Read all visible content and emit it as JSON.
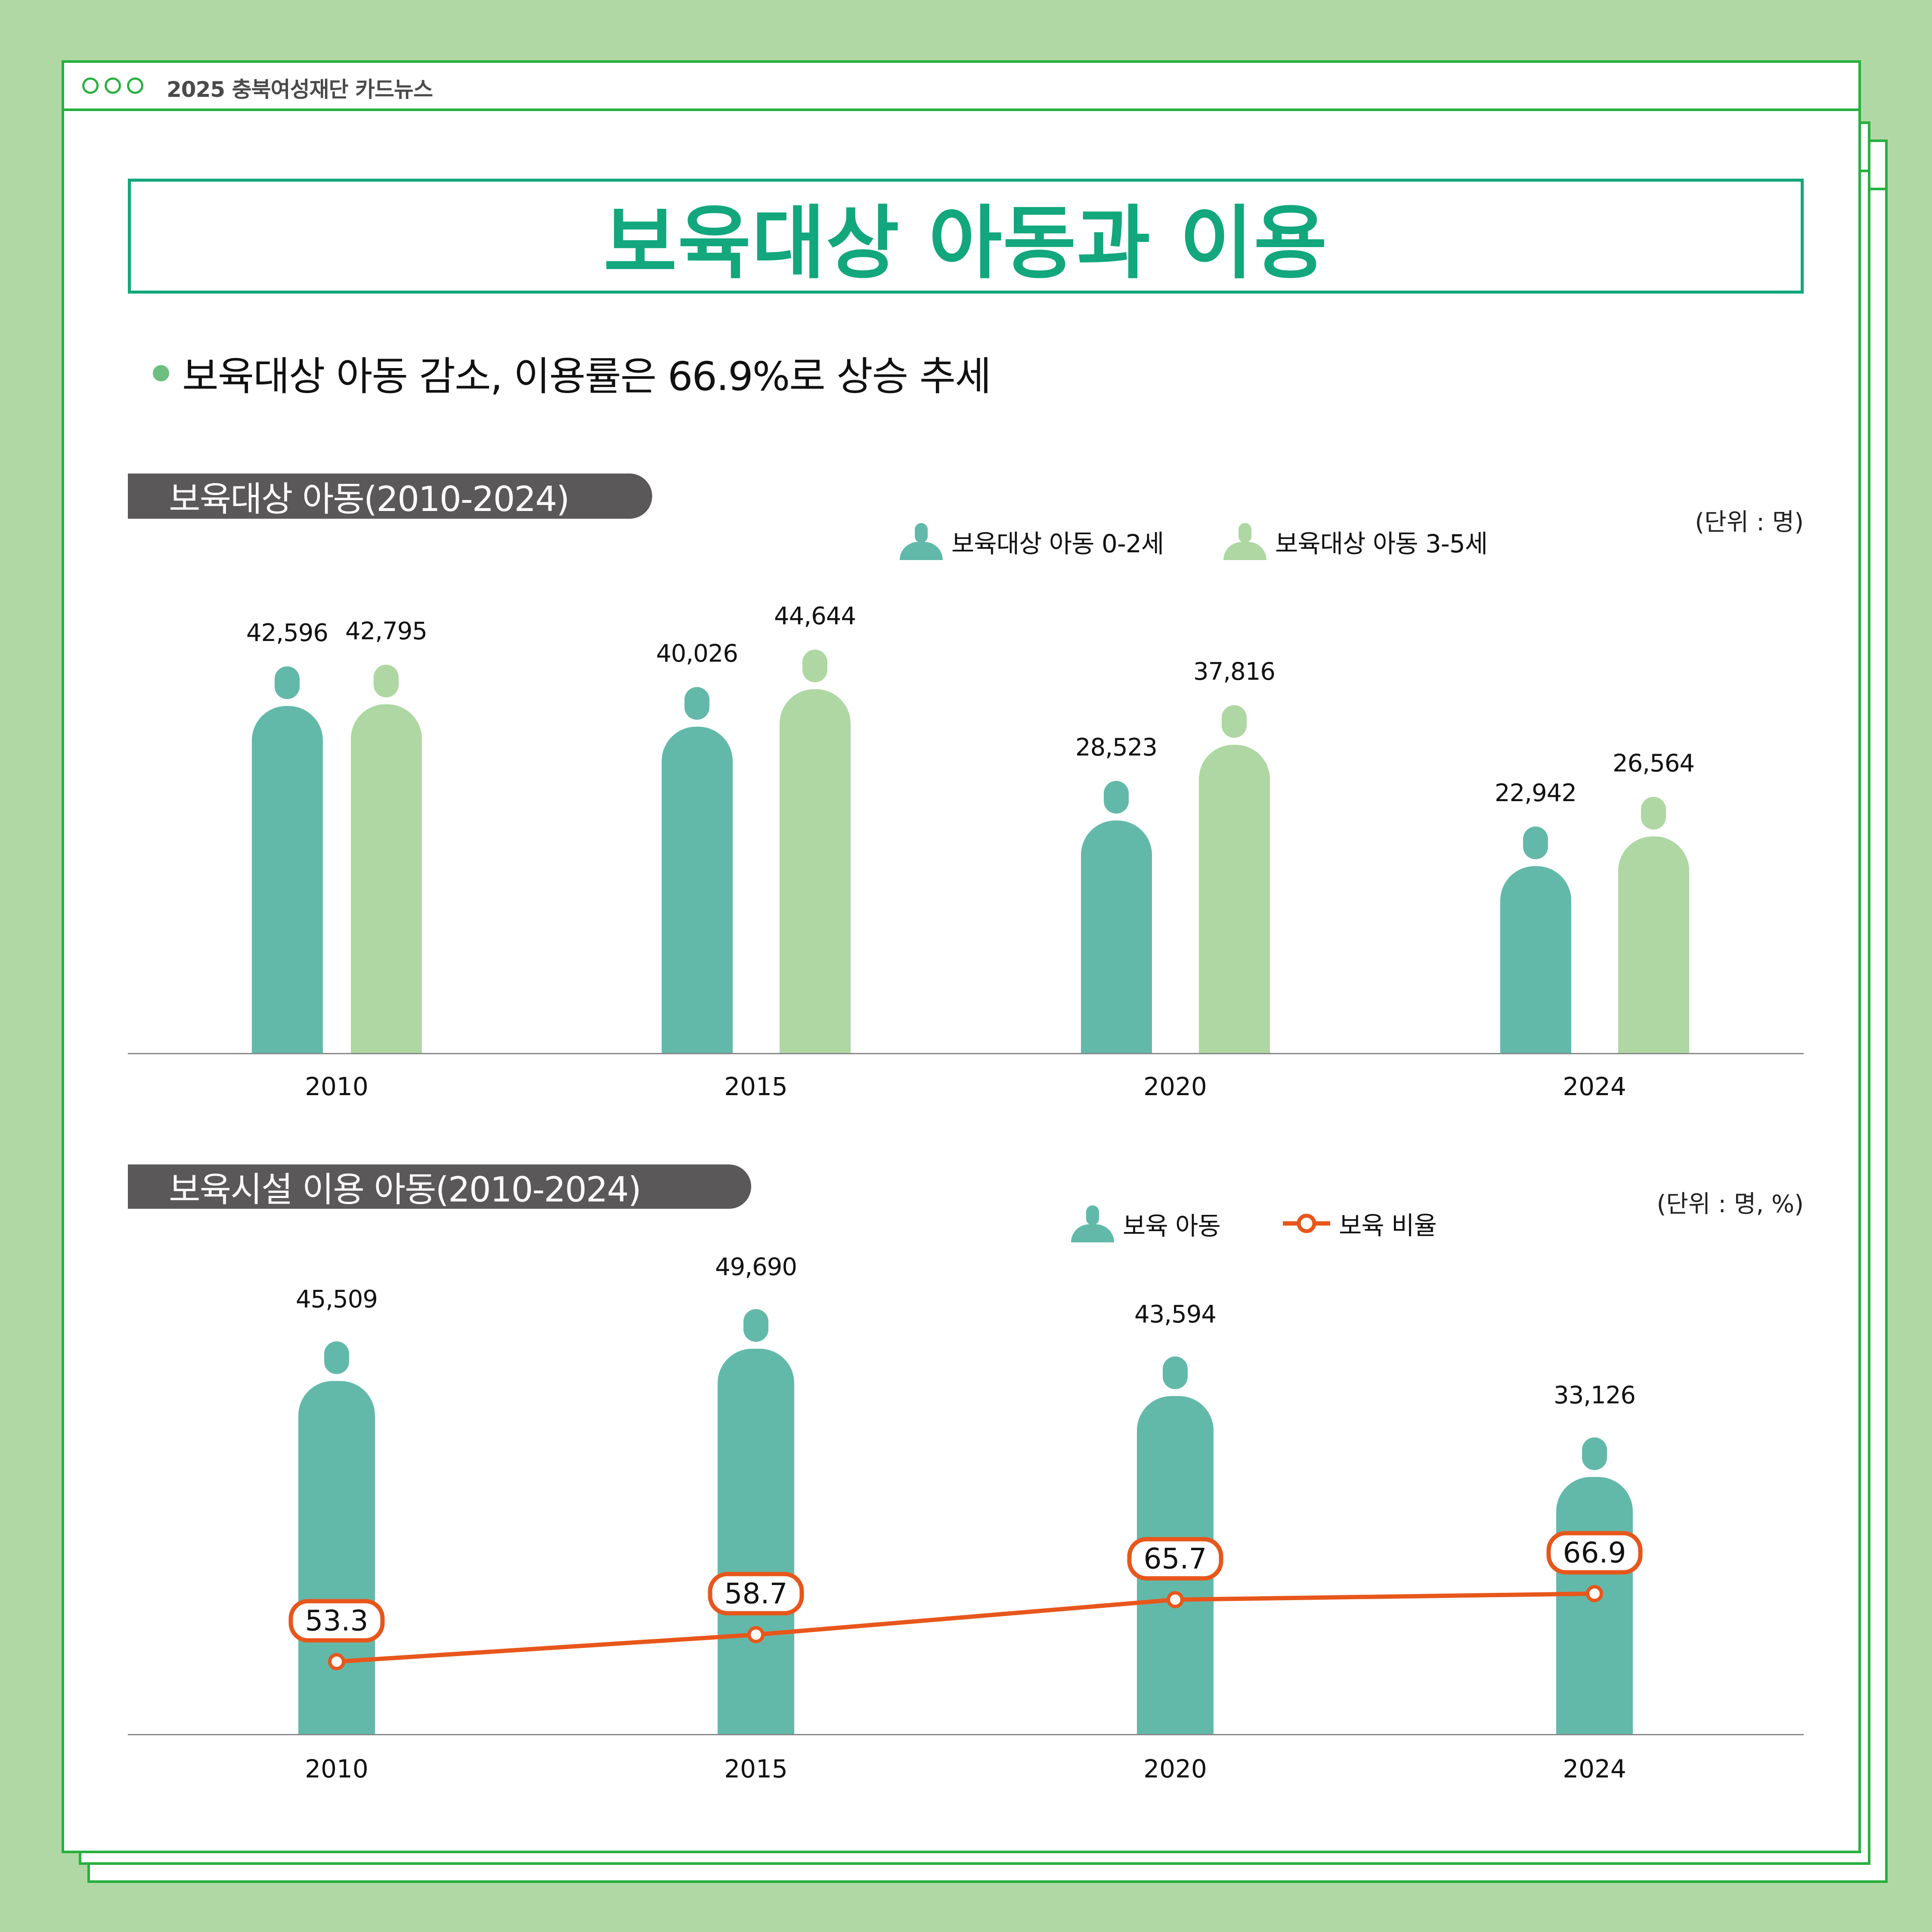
{
  "header": {
    "brand": "2025 충북여성재단 카드뉴스"
  },
  "title": "보육대상 아동과 이용",
  "headline": "보육대상 아동 감소, 이용률은 66.9%로 상승 추세",
  "section1": {
    "title": "보육대상 아동(2010-2024)",
    "unit": "(단위 : 명)",
    "legend": [
      "보육대상 아동 0-2세",
      "보육대상 아동 3-5세"
    ]
  },
  "section2": {
    "title": "보육시설 이용 아동(2010-2024)",
    "unit": "(단위 : 명, %)",
    "legend": [
      "보육 아동",
      "보육 비율"
    ]
  },
  "colors": {
    "teal": "#63b9a9",
    "lightgreen": "#aed7a3",
    "orange": "#e8561b",
    "green": "#27b03f",
    "title": "#12a77c"
  },
  "chart_data": [
    {
      "type": "bar",
      "title": "보육대상 아동(2010-2024)",
      "categories": [
        "2010",
        "2015",
        "2020",
        "2024"
      ],
      "series": [
        {
          "name": "보육대상 아동 0-2세",
          "values": [
            42596,
            40026,
            28523,
            22942
          ],
          "labels": [
            "42,596",
            "40,026",
            "28,523",
            "22,942"
          ]
        },
        {
          "name": "보육대상 아동 3-5세",
          "values": [
            42795,
            44644,
            37816,
            26564
          ],
          "labels": [
            "42,795",
            "44,644",
            "37,816",
            "26,564"
          ]
        }
      ],
      "ylabel": "(단위 : 명)",
      "legend_position": "top",
      "grid": false
    },
    {
      "type": "bar+line",
      "title": "보육시설 이용 아동(2010-2024)",
      "categories": [
        "2010",
        "2015",
        "2020",
        "2024"
      ],
      "series": [
        {
          "name": "보육 아동",
          "type": "bar",
          "values": [
            45509,
            49690,
            43594,
            33126
          ],
          "labels": [
            "45,509",
            "49,690",
            "43,594",
            "33,126"
          ]
        },
        {
          "name": "보육 비율",
          "type": "line",
          "values": [
            53.3,
            58.7,
            65.7,
            66.9
          ],
          "labels": [
            "53.3",
            "58.7",
            "65.7",
            "66.9"
          ]
        }
      ],
      "ylabel": "(단위 : 명, %)",
      "legend_position": "top",
      "grid": false
    }
  ]
}
